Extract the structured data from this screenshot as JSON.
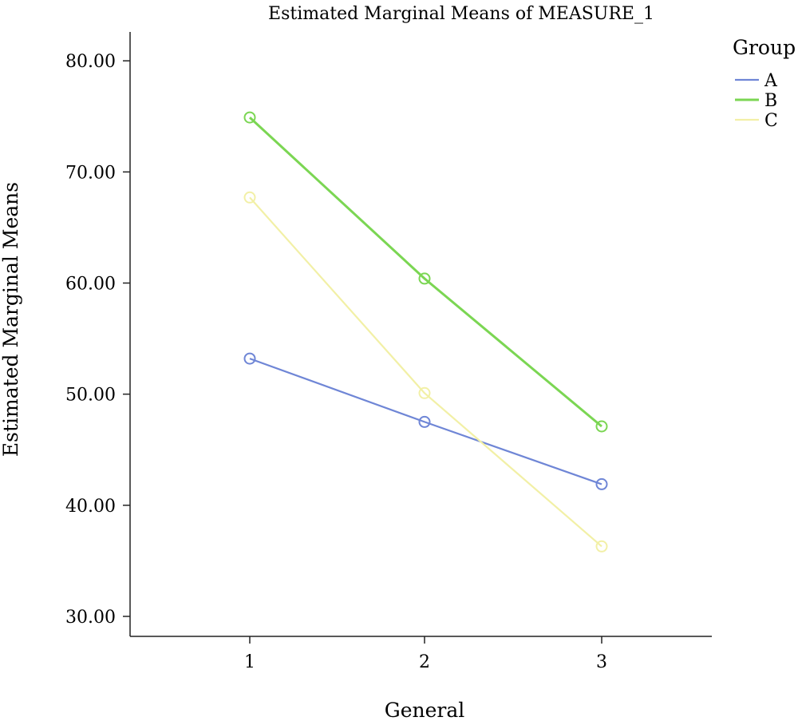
{
  "chart_data": {
    "type": "line",
    "title": "Estimated Marginal Means of MEASURE_1",
    "xlabel": "General",
    "ylabel": "Estimated Marginal Means",
    "categories": [
      "1",
      "2",
      "3"
    ],
    "y_ticks": [
      "30.00",
      "40.00",
      "50.00",
      "60.00",
      "70.00",
      "80.00"
    ],
    "ylim": [
      28.2,
      82.6
    ],
    "grid": false,
    "legend": {
      "title": "Group",
      "placement": "top-right"
    },
    "series": [
      {
        "name": "A",
        "color": "#6f86d6",
        "values": [
          53.2,
          47.5,
          41.9
        ]
      },
      {
        "name": "B",
        "color": "#7bd653",
        "values": [
          74.9,
          60.4,
          47.1
        ]
      },
      {
        "name": "C",
        "color": "#f2f0a6",
        "values": [
          67.7,
          50.1,
          36.3
        ]
      }
    ]
  }
}
